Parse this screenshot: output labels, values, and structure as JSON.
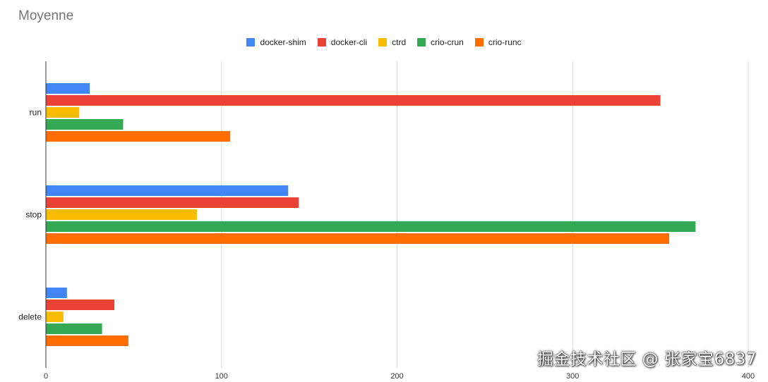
{
  "chart_data": {
    "type": "bar",
    "orientation": "horizontal",
    "title": "Moyenne",
    "categories": [
      "run",
      "stop",
      "delete"
    ],
    "series": [
      {
        "name": "docker-shim",
        "color": "#4285f4",
        "values": [
          25,
          138,
          12
        ]
      },
      {
        "name": "docker-cli",
        "color": "#ea4335",
        "values": [
          350,
          144,
          39
        ]
      },
      {
        "name": "ctrd",
        "color": "#fbbc04",
        "values": [
          19,
          86,
          10
        ]
      },
      {
        "name": "crio-crun",
        "color": "#34a853",
        "values": [
          44,
          370,
          32
        ]
      },
      {
        "name": "crio-runc",
        "color": "#ff6d01",
        "values": [
          105,
          355,
          47
        ]
      }
    ],
    "x_ticks": [
      "0",
      "100",
      "200",
      "300",
      "400"
    ],
    "xlim": [
      0,
      400
    ],
    "grid": true,
    "legend_position": "top"
  },
  "watermark": "掘金技术社区 @ 张家宝6837"
}
